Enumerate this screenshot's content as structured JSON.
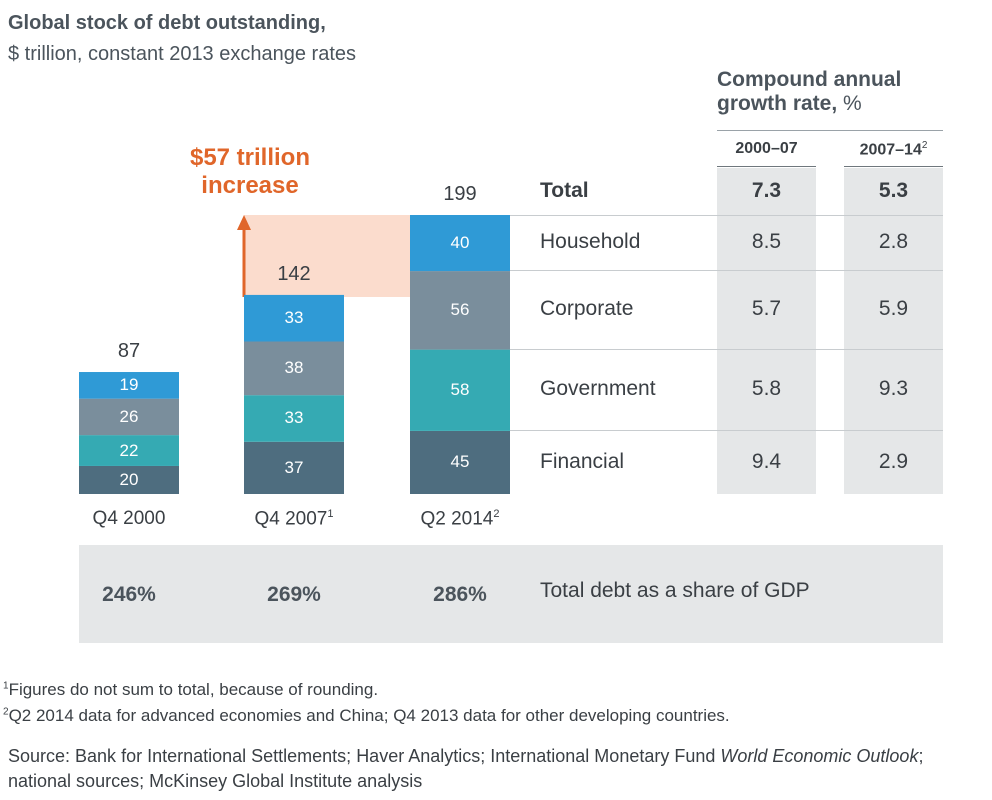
{
  "header": {
    "title": "Global stock of debt outstanding,",
    "subtitle": "$ trillion, constant 2013 exchange rates"
  },
  "cagr": {
    "heading_line1": "Compound annual",
    "heading_line2": "growth rate,",
    "heading_unit": "%",
    "columns": [
      {
        "label": "2000–07",
        "sup": ""
      },
      {
        "label": "2007–14",
        "sup": "2"
      }
    ]
  },
  "annotation": {
    "line1": "$57 trillion",
    "line2": "increase"
  },
  "chart_data": {
    "type": "bar",
    "stacked": true,
    "title": "Global stock of debt outstanding,",
    "subtitle": "$ trillion, constant 2013 exchange rates",
    "categories": [
      "Q4 2000",
      "Q4 2007",
      "Q2 2014"
    ],
    "category_sups": [
      "",
      "1",
      "2"
    ],
    "totals": [
      87,
      142,
      199
    ],
    "ylim": [
      0,
      199
    ],
    "series": [
      {
        "name": "Financial",
        "values": [
          20,
          37,
          45
        ],
        "color": "#4e6d7f"
      },
      {
        "name": "Government",
        "values": [
          22,
          33,
          58
        ],
        "color": "#35aab3"
      },
      {
        "name": "Corporate",
        "values": [
          26,
          38,
          56
        ],
        "color": "#7a8e9c"
      },
      {
        "name": "Household",
        "values": [
          19,
          33,
          40
        ],
        "color": "#2f9ad6"
      }
    ]
  },
  "table": {
    "total": {
      "label": "Total",
      "v1": "7.3",
      "v2": "5.3"
    },
    "rows": [
      {
        "label": "Household",
        "v1": "8.5",
        "v2": "2.8"
      },
      {
        "label": "Corporate",
        "v1": "5.7",
        "v2": "5.9"
      },
      {
        "label": "Government",
        "v1": "5.8",
        "v2": "9.3"
      },
      {
        "label": "Financial",
        "v1": "9.4",
        "v2": "2.9"
      }
    ]
  },
  "gdp_share": {
    "values": [
      "246%",
      "269%",
      "286%"
    ],
    "label": "Total debt as a share of GDP"
  },
  "footnotes": {
    "note1_sup": "1",
    "note1": "Figures do not sum to total, because of rounding.",
    "note2_sup": "2",
    "note2": "Q2 2014 data for advanced economies and China; Q4 2013 data for other developing countries.",
    "source_prefix": "Source: Bank for International Settlements; Haver Analytics; International Monetary Fund ",
    "source_italic": "World Economic Outlook",
    "source_suffix": "; national sources; McKinsey Global Institute analysis"
  },
  "colors": {
    "increase_arrow": "#e0662a",
    "increase_band": "#fbdccd"
  }
}
